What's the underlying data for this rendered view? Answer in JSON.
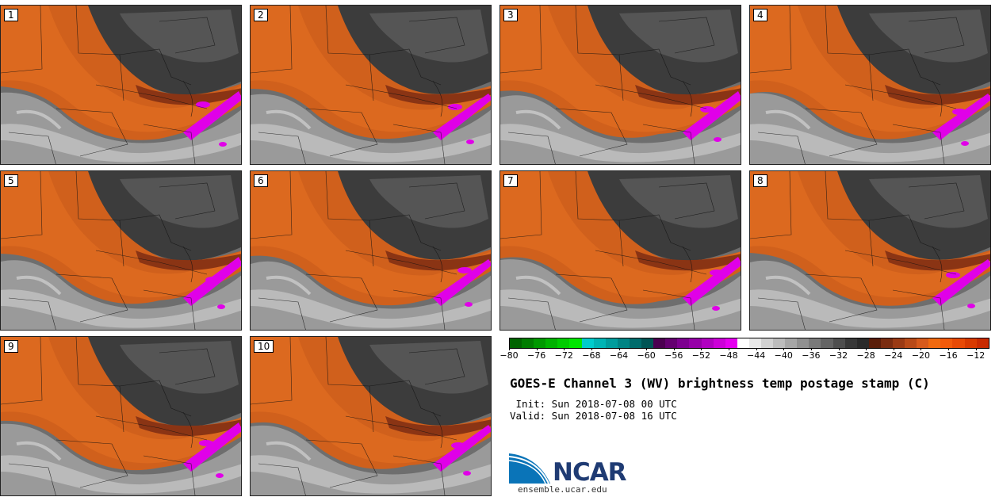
{
  "panels": [
    {
      "label": "1"
    },
    {
      "label": "2"
    },
    {
      "label": "3"
    },
    {
      "label": "4"
    },
    {
      "label": "5"
    },
    {
      "label": "6"
    },
    {
      "label": "7"
    },
    {
      "label": "8"
    },
    {
      "label": "9"
    },
    {
      "label": "10"
    }
  ],
  "colorbar": {
    "ticks": [
      "−80",
      "−76",
      "−72",
      "−68",
      "−64",
      "−60",
      "−56",
      "−52",
      "−48",
      "−44",
      "−40",
      "−36",
      "−32",
      "−28",
      "−24",
      "−20",
      "−16",
      "−12"
    ],
    "range": [
      -80,
      -10
    ],
    "colors": [
      "#006400",
      "#007d00",
      "#009900",
      "#00b300",
      "#00cc00",
      "#00e600",
      "#00cccc",
      "#00b4b4",
      "#009c9c",
      "#008484",
      "#006c6c",
      "#005454",
      "#4b0050",
      "#640070",
      "#7d0090",
      "#9600a8",
      "#b000c0",
      "#cc00d8",
      "#e600f0",
      "#ffffff",
      "#e8e8e8",
      "#d2d2d2",
      "#bcbcbc",
      "#a6a6a6",
      "#909090",
      "#7a7a7a",
      "#646464",
      "#4e4e4e",
      "#383838",
      "#2a2a2a",
      "#5a1e0a",
      "#7a2c10",
      "#9a3a14",
      "#b84a18",
      "#d65a1c",
      "#f06a10",
      "#f25a0a",
      "#e84a05",
      "#d83a00",
      "#c82a00"
    ]
  },
  "title": "GOES-E Channel 3 (WV) brightness temp postage stamp (C)",
  "init": " Init: Sun 2018-07-08 00 UTC",
  "valid": "Valid: Sun 2018-07-08 16 UTC",
  "logo": {
    "text": "NCAR",
    "url": "ensemble.ucar.edu",
    "color": "#1f3b73",
    "swoosh_color": "#0a74b8"
  }
}
